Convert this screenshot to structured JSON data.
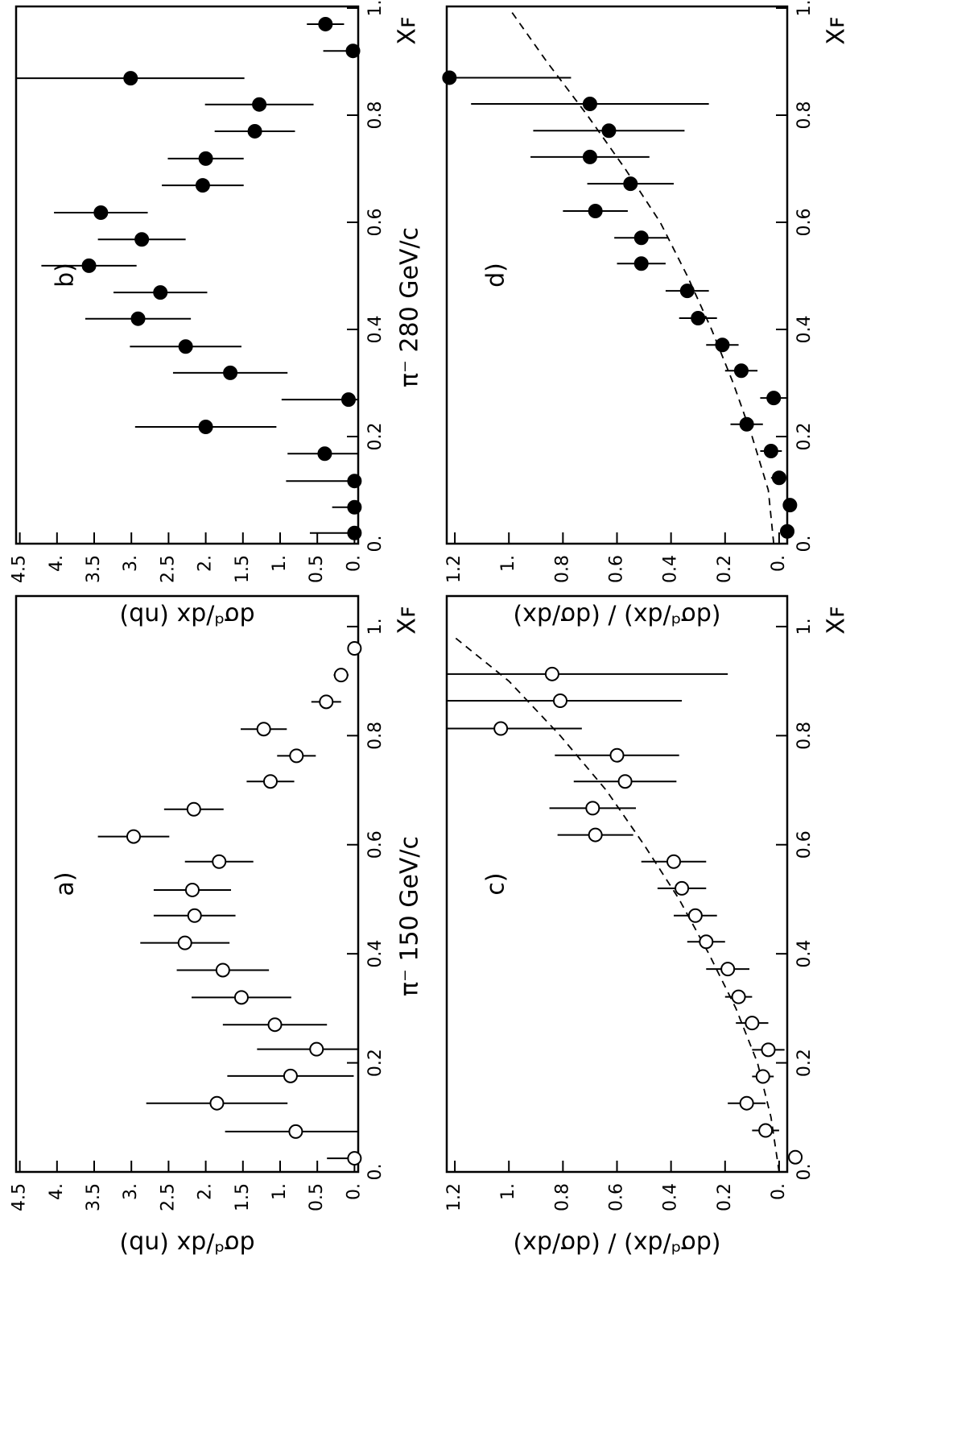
{
  "chart_data": [
    {
      "type": "scatter",
      "panel": "a)",
      "title": "π⁻ 150 GeV/c",
      "xlabel": "Xꜰ",
      "ylabel": "dσᵈ/dx (nb)",
      "marker": "open",
      "color": "#000000",
      "xlim": [
        0,
        1.056
      ],
      "ylim": [
        -0.05,
        4.55
      ],
      "xticks": [
        {
          "value": 0,
          "label": "0."
        },
        0.2,
        0.4,
        0.6,
        0.8,
        {
          "value": 1,
          "label": "1."
        }
      ],
      "yticks": [
        {
          "value": 0,
          "label": "0."
        },
        0.5,
        {
          "value": 1,
          "label": "1."
        },
        1.5,
        {
          "value": 2,
          "label": "2."
        },
        2.5,
        {
          "value": 3,
          "label": "3."
        },
        3.5,
        {
          "value": 4,
          "label": "4."
        },
        4.5
      ],
      "x": [
        0.025,
        0.074,
        0.126,
        0.176,
        0.225,
        0.27,
        0.32,
        0.37,
        0.42,
        0.47,
        0.517,
        0.569,
        0.615,
        0.665,
        0.716,
        0.763,
        0.812,
        0.862,
        0.911,
        0.96
      ],
      "values": [
        0,
        0.79,
        1.85,
        0.86,
        0.51,
        1.07,
        1.52,
        1.77,
        2.28,
        2.15,
        2.18,
        1.82,
        2.97,
        2.16,
        1.13,
        0.78,
        1.22,
        0.38,
        0.18,
        0
      ],
      "errors": [
        0.37,
        0.95,
        0.95,
        0.85,
        0.8,
        0.7,
        0.67,
        0.62,
        0.6,
        0.55,
        0.52,
        0.46,
        0.48,
        0.4,
        0.32,
        0.26,
        0.31,
        0.2,
        0.1,
        0
      ]
    },
    {
      "type": "scatter",
      "panel": "b)",
      "title": "π⁻ 280 GeV/c",
      "xlabel": "Xꜰ",
      "ylabel": "dσᵈ/dx (nb)",
      "marker": "filled",
      "color": "#000000",
      "xlim": [
        0,
        1.003
      ],
      "ylim": [
        -0.05,
        4.55
      ],
      "xticks": [
        {
          "value": 0,
          "label": "0."
        },
        0.2,
        0.4,
        0.6,
        0.8,
        {
          "value": 1,
          "label": "1."
        }
      ],
      "yticks": [
        {
          "value": 0,
          "label": "0."
        },
        0.5,
        {
          "value": 1,
          "label": "1."
        },
        1.5,
        {
          "value": 2,
          "label": "2."
        },
        2.5,
        {
          "value": 3,
          "label": "3."
        },
        3.5,
        {
          "value": 4,
          "label": "4."
        },
        4.5
      ],
      "x": [
        0.02,
        0.068,
        0.117,
        0.168,
        0.218,
        0.269,
        0.319,
        0.368,
        0.42,
        0.469,
        0.519,
        0.568,
        0.618,
        0.669,
        0.719,
        0.77,
        0.82,
        0.869,
        0.92,
        0.97
      ],
      "values": [
        0,
        0,
        0,
        0.4,
        2.0,
        0.08,
        1.67,
        2.27,
        2.91,
        2.61,
        3.57,
        2.86,
        3.41,
        2.04,
        2.0,
        1.34,
        1.28,
        3.01,
        0.02,
        0.39
      ],
      "errors": [
        0.6,
        0.3,
        0.92,
        0.5,
        0.95,
        0.9,
        0.77,
        0.75,
        0.71,
        0.63,
        0.64,
        0.59,
        0.63,
        0.55,
        0.51,
        0.54,
        0.73,
        1.53,
        0.4,
        0.25
      ]
    },
    {
      "type": "scatter",
      "panel": "c)",
      "xlabel": "Xꜰ",
      "ylabel": "(dσᵈ/dx) / (dσ/dx)",
      "marker": "open",
      "color": "#000000",
      "xlim": [
        0,
        1.056
      ],
      "ylim": [
        -0.03,
        1.23
      ],
      "xticks": [
        {
          "value": 0,
          "label": "0."
        },
        0.2,
        0.4,
        0.6,
        0.8,
        {
          "value": 1,
          "label": "1."
        }
      ],
      "yticks": [
        {
          "value": 0,
          "label": "0."
        },
        0.2,
        0.4,
        0.6,
        0.8,
        {
          "value": 1,
          "label": "1."
        },
        1.2
      ],
      "x": [
        0.027,
        0.076,
        0.126,
        0.175,
        0.224,
        0.273,
        0.321,
        0.372,
        0.422,
        0.47,
        0.52,
        0.569,
        0.618,
        0.667,
        0.716,
        0.764,
        0.813,
        0.864,
        0.913
      ],
      "values": [
        -0.06,
        0.05,
        0.12,
        0.06,
        0.04,
        0.1,
        0.15,
        0.19,
        0.27,
        0.31,
        0.36,
        0.39,
        0.68,
        0.69,
        0.57,
        0.6,
        1.03,
        0.81,
        0.84
      ],
      "errors": [
        0,
        0.05,
        0.07,
        0.04,
        0.06,
        0.06,
        0.05,
        0.08,
        0.07,
        0.08,
        0.09,
        0.12,
        0.14,
        0.16,
        0.19,
        0.23,
        0.3,
        0.45,
        0.65
      ],
      "curve": {
        "x": [
          0,
          0.1,
          0.2,
          0.3,
          0.4,
          0.5,
          0.6,
          0.7,
          0.8,
          0.9,
          0.98
        ],
        "values": [
          0,
          0.03,
          0.08,
          0.16,
          0.26,
          0.37,
          0.5,
          0.64,
          0.81,
          1.0,
          1.2
        ]
      }
    },
    {
      "type": "scatter",
      "panel": "d)",
      "xlabel": "Xꜰ",
      "ylabel": "(dσᵈ/dx) / (dσ/dx)",
      "marker": "filled",
      "color": "#000000",
      "xlim": [
        0,
        1.003
      ],
      "ylim": [
        -0.03,
        1.23
      ],
      "xticks": [
        {
          "value": 0,
          "label": "0."
        },
        0.2,
        0.4,
        0.6,
        0.8,
        {
          "value": 1,
          "label": "1."
        }
      ],
      "yticks": [
        {
          "value": 0,
          "label": "0."
        },
        0.2,
        0.4,
        0.6,
        0.8,
        {
          "value": 1,
          "label": "1."
        },
        1.2
      ],
      "x": [
        0.023,
        0.072,
        0.123,
        0.173,
        0.223,
        0.272,
        0.323,
        0.371,
        0.421,
        0.472,
        0.523,
        0.571,
        0.621,
        0.672,
        0.722,
        0.771,
        0.821,
        0.87
      ],
      "values": [
        -0.03,
        -0.04,
        0,
        0.03,
        0.12,
        0.02,
        0.14,
        0.21,
        0.3,
        0.34,
        0.51,
        0.51,
        0.68,
        0.55,
        0.7,
        0.63,
        0.7,
        1.22
      ],
      "errors": [
        0.02,
        0,
        0.03,
        0.04,
        0.06,
        0.05,
        0.06,
        0.06,
        0.07,
        0.08,
        0.09,
        0.1,
        0.12,
        0.16,
        0.22,
        0.28,
        0.44,
        0.45
      ],
      "curve": {
        "x": [
          0,
          0.1,
          0.2,
          0.3,
          0.4,
          0.5,
          0.6,
          0.7,
          0.8,
          0.9,
          1.0
        ],
        "values": [
          0.02,
          0.04,
          0.1,
          0.17,
          0.25,
          0.34,
          0.44,
          0.57,
          0.71,
          0.86,
          1.0
        ]
      }
    }
  ]
}
